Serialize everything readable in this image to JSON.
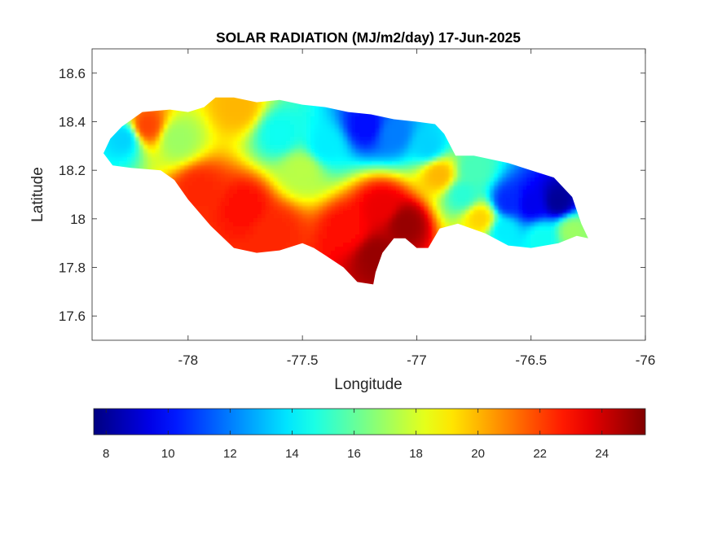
{
  "title": "SOLAR RADIATION (MJ/m2/day) 17-Jun-2025",
  "chart_data": {
    "type": "heatmap",
    "title": "SOLAR RADIATION (MJ/m2/day) 17-Jun-2025",
    "xlabel": "Longitude",
    "ylabel": "Latitude",
    "xlim": [
      -78.42,
      -76
    ],
    "ylim": [
      17.5,
      18.7
    ],
    "x_ticks": [
      -78,
      -77.5,
      -77,
      -76.5,
      -76
    ],
    "x_tick_labels": [
      "-78",
      "-77.5",
      "-77",
      "-76.5",
      "-76"
    ],
    "y_ticks": [
      17.6,
      17.8,
      18,
      18.2,
      18.4,
      18.6
    ],
    "y_tick_labels": [
      "17.6",
      "17.8",
      "18",
      "18.2",
      "18.4",
      "18.6"
    ],
    "colorbar": {
      "colormap": "jet",
      "range": [
        7.6,
        25.4
      ],
      "orientation": "horizontal",
      "ticks": [
        8,
        10,
        12,
        14,
        16,
        18,
        20,
        22,
        24
      ],
      "tick_labels": [
        "8",
        "10",
        "12",
        "14",
        "16",
        "18",
        "20",
        "22",
        "24"
      ]
    },
    "region": "Jamaica",
    "outline": [
      [
        -78.37,
        18.27
      ],
      [
        -78.34,
        18.33
      ],
      [
        -78.29,
        18.38
      ],
      [
        -78.2,
        18.44
      ],
      [
        -78.08,
        18.45
      ],
      [
        -78.0,
        18.44
      ],
      [
        -77.93,
        18.46
      ],
      [
        -77.88,
        18.5
      ],
      [
        -77.8,
        18.5
      ],
      [
        -77.7,
        18.48
      ],
      [
        -77.6,
        18.49
      ],
      [
        -77.5,
        18.47
      ],
      [
        -77.4,
        18.46
      ],
      [
        -77.3,
        18.44
      ],
      [
        -77.2,
        18.43
      ],
      [
        -77.1,
        18.41
      ],
      [
        -77.0,
        18.4
      ],
      [
        -76.92,
        18.39
      ],
      [
        -76.88,
        18.35
      ],
      [
        -76.83,
        18.26
      ],
      [
        -76.75,
        18.26
      ],
      [
        -76.6,
        18.23
      ],
      [
        -76.5,
        18.2
      ],
      [
        -76.4,
        18.17
      ],
      [
        -76.32,
        18.09
      ],
      [
        -76.28,
        17.98
      ],
      [
        -76.25,
        17.92
      ],
      [
        -76.3,
        17.93
      ],
      [
        -76.38,
        17.9
      ],
      [
        -76.5,
        17.88
      ],
      [
        -76.6,
        17.89
      ],
      [
        -76.7,
        17.94
      ],
      [
        -76.82,
        17.98
      ],
      [
        -76.9,
        17.96
      ],
      [
        -76.95,
        17.88
      ],
      [
        -77.0,
        17.88
      ],
      [
        -77.05,
        17.92
      ],
      [
        -77.1,
        17.92
      ],
      [
        -77.15,
        17.86
      ],
      [
        -77.18,
        17.78
      ],
      [
        -77.19,
        17.73
      ],
      [
        -77.26,
        17.74
      ],
      [
        -77.32,
        17.8
      ],
      [
        -77.4,
        17.85
      ],
      [
        -77.45,
        17.88
      ],
      [
        -77.5,
        17.9
      ],
      [
        -77.6,
        17.87
      ],
      [
        -77.7,
        17.86
      ],
      [
        -77.8,
        17.88
      ],
      [
        -77.9,
        17.97
      ],
      [
        -78.0,
        18.08
      ],
      [
        -78.06,
        18.16
      ],
      [
        -78.12,
        18.2
      ],
      [
        -78.25,
        18.21
      ],
      [
        -78.33,
        18.22
      ]
    ],
    "field": [
      {
        "lon": -78.18,
        "lat": 18.38,
        "value": 22.0
      },
      {
        "lon": -78.05,
        "lat": 18.33,
        "value": 17.0
      },
      {
        "lon": -78.28,
        "lat": 18.33,
        "value": 13.5
      },
      {
        "lon": -77.95,
        "lat": 18.12,
        "value": 22.5
      },
      {
        "lon": -77.75,
        "lat": 18.05,
        "value": 23.0
      },
      {
        "lon": -77.62,
        "lat": 17.95,
        "value": 22.5
      },
      {
        "lon": -77.78,
        "lat": 18.46,
        "value": 20.0
      },
      {
        "lon": -77.6,
        "lat": 18.35,
        "value": 14.5
      },
      {
        "lon": -77.4,
        "lat": 18.3,
        "value": 14.0
      },
      {
        "lon": -77.5,
        "lat": 18.2,
        "value": 17.5
      },
      {
        "lon": -77.3,
        "lat": 17.95,
        "value": 23.0
      },
      {
        "lon": -77.18,
        "lat": 17.85,
        "value": 25.0
      },
      {
        "lon": -77.05,
        "lat": 17.98,
        "value": 25.0
      },
      {
        "lon": -77.15,
        "lat": 18.05,
        "value": 23.5
      },
      {
        "lon": -77.22,
        "lat": 18.38,
        "value": 10.0
      },
      {
        "lon": -77.1,
        "lat": 18.35,
        "value": 12.0
      },
      {
        "lon": -76.95,
        "lat": 18.3,
        "value": 13.5
      },
      {
        "lon": -76.9,
        "lat": 18.18,
        "value": 20.0
      },
      {
        "lon": -76.8,
        "lat": 18.1,
        "value": 15.0
      },
      {
        "lon": -76.72,
        "lat": 18.0,
        "value": 19.5
      },
      {
        "lon": -76.62,
        "lat": 17.95,
        "value": 14.0
      },
      {
        "lon": -76.6,
        "lat": 18.07,
        "value": 10.5
      },
      {
        "lon": -76.5,
        "lat": 18.06,
        "value": 9.5
      },
      {
        "lon": -76.38,
        "lat": 18.07,
        "value": 8.0
      },
      {
        "lon": -76.32,
        "lat": 17.95,
        "value": 17.0
      },
      {
        "lon": -76.45,
        "lat": 17.92,
        "value": 14.5
      },
      {
        "lon": -76.75,
        "lat": 18.2,
        "value": 15.5
      }
    ]
  }
}
